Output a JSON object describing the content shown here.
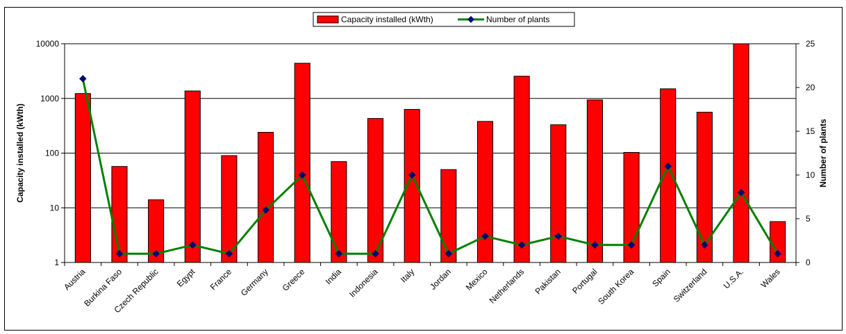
{
  "chart_data": {
    "type": "bar",
    "categories": [
      "Austria",
      "Burkina Faso",
      "Czech Republic",
      "Egypt",
      "France",
      "Germany",
      "Greece",
      "India",
      "Indonesia",
      "Italy",
      "Jordan",
      "Mexico",
      "Netherlands",
      "Pakistan",
      "Portugal",
      "South Korea",
      "Spain",
      "Switzerland",
      "U.S.A.",
      "Wales"
    ],
    "series": [
      {
        "name": "Capacity installed (kWth)",
        "type": "bar",
        "axis": "left",
        "color": "#ff0000",
        "values": [
          1230,
          57,
          14,
          1370,
          90,
          240,
          4400,
          70,
          430,
          630,
          50,
          380,
          2550,
          330,
          940,
          103,
          1500,
          560,
          10000,
          5.6
        ]
      },
      {
        "name": "Number of plants",
        "type": "line",
        "axis": "right",
        "color": "#008000",
        "marker_color": "#000080",
        "values": [
          21,
          1,
          1,
          2,
          1,
          6,
          10,
          1,
          1,
          10,
          1,
          3,
          2,
          3,
          2,
          2,
          11,
          2,
          8,
          1
        ]
      }
    ],
    "ylabel": "Capacity installed (kWth)",
    "ylabel_right": "Number of plants",
    "xlabel": "",
    "yscale": "log",
    "ylim": [
      1,
      10000
    ],
    "yticks": [
      "1",
      "10",
      "100",
      "1000",
      "10000"
    ],
    "ylim_right": [
      0,
      25
    ],
    "yticks_right": [
      "0",
      "5",
      "10",
      "15",
      "20",
      "25"
    ],
    "grid": "horizontal",
    "legend_position": "top"
  }
}
